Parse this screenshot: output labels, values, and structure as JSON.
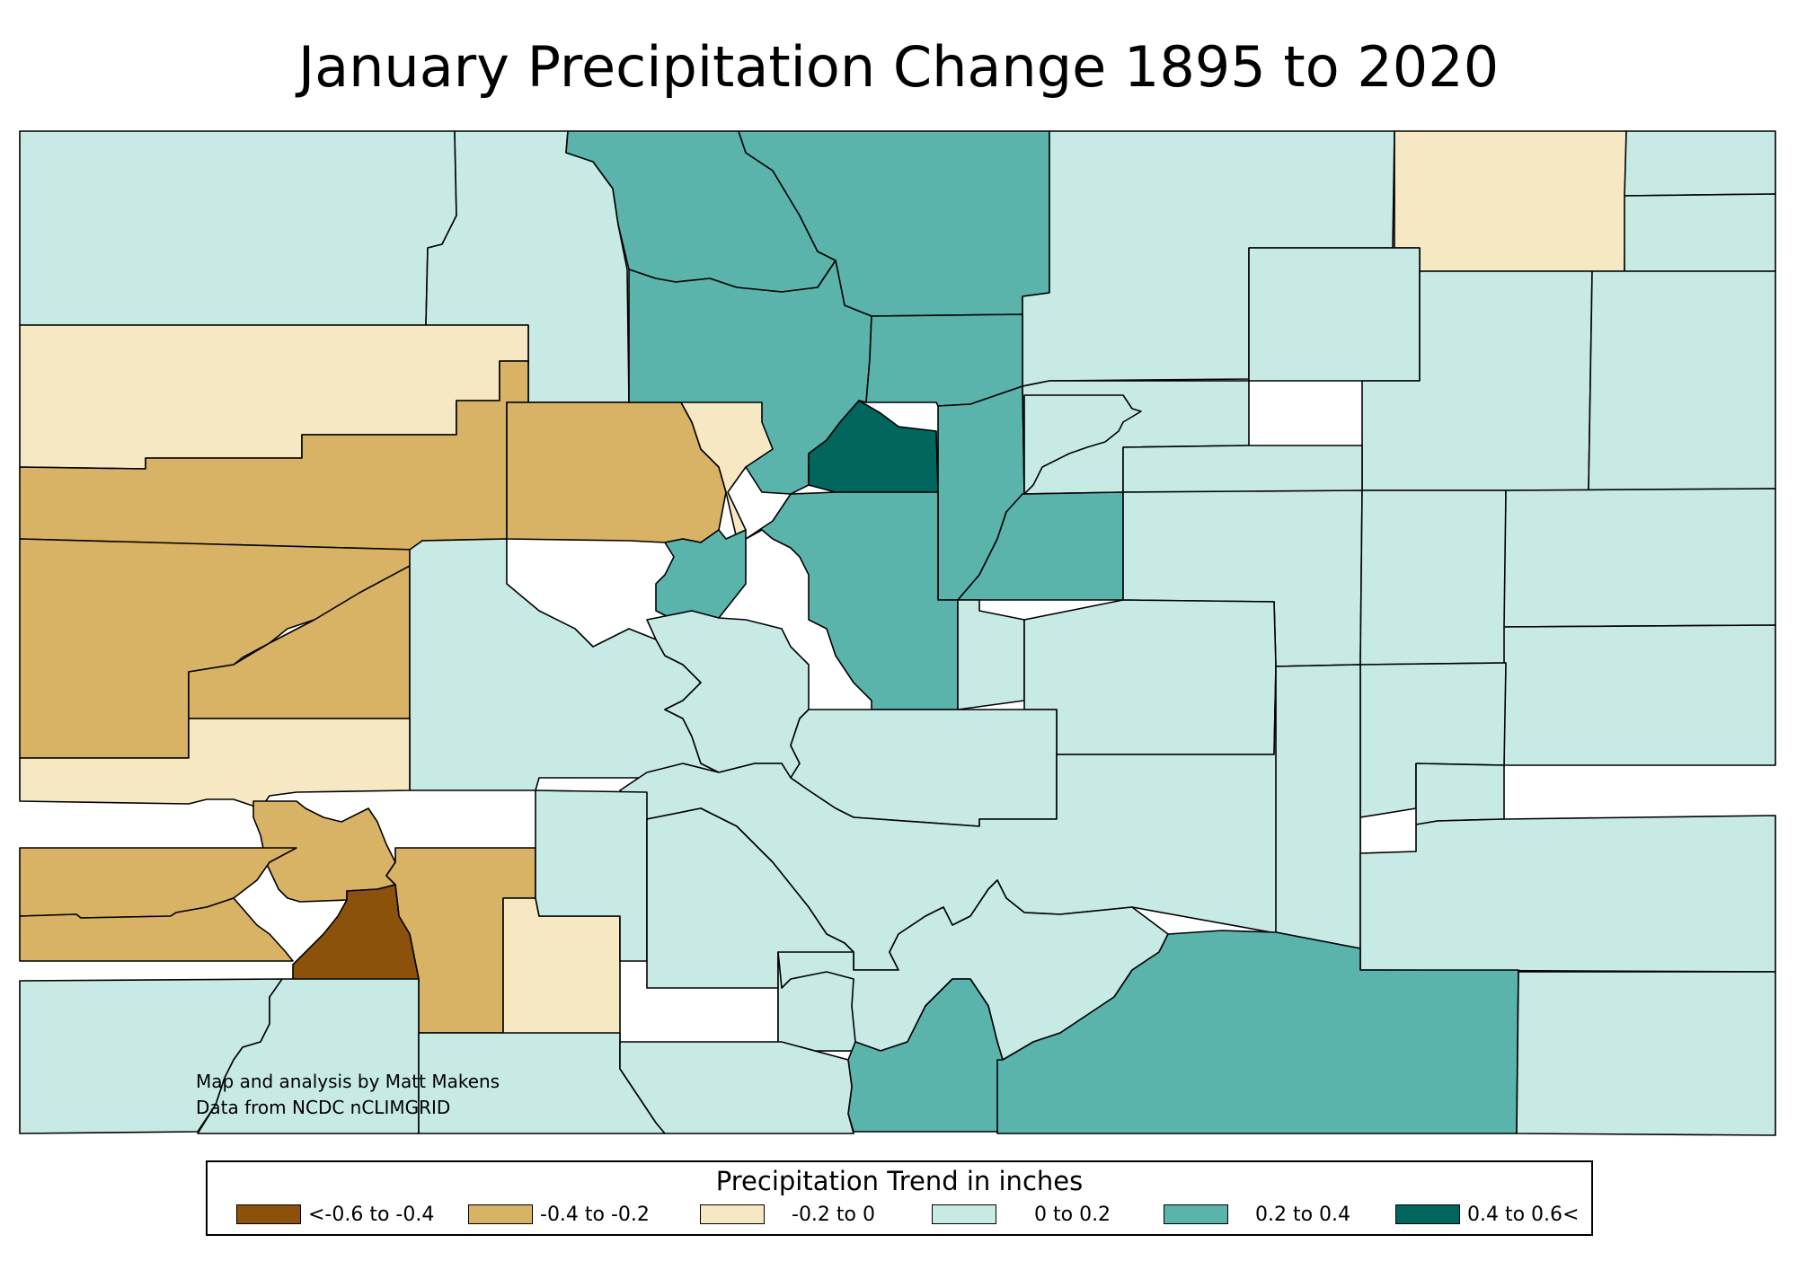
{
  "title": "January Precipitation Change 1895 to 2020",
  "credits": {
    "line1": "Map and analysis by Matt Makens",
    "line2": "Data from NCDC nCLIMGRID"
  },
  "legend": {
    "title": "Precipitation Trend in inches",
    "classes": [
      {
        "label": "<-0.6 to -0.4",
        "color": "#8c510a"
      },
      {
        "label": "-0.4 to -0.2",
        "color": "#d8b365"
      },
      {
        "label": "-0.2 to 0",
        "color": "#f6e8c3"
      },
      {
        "label": "0 to 0.2",
        "color": "#c7eae5"
      },
      {
        "label": "0.2 to 0.4",
        "color": "#5ab4ac"
      },
      {
        "label": "0.4 to 0.6<",
        "color": "#01665e"
      }
    ]
  },
  "colors": {
    "outline": "#000000",
    "background": "#ffffff"
  }
}
